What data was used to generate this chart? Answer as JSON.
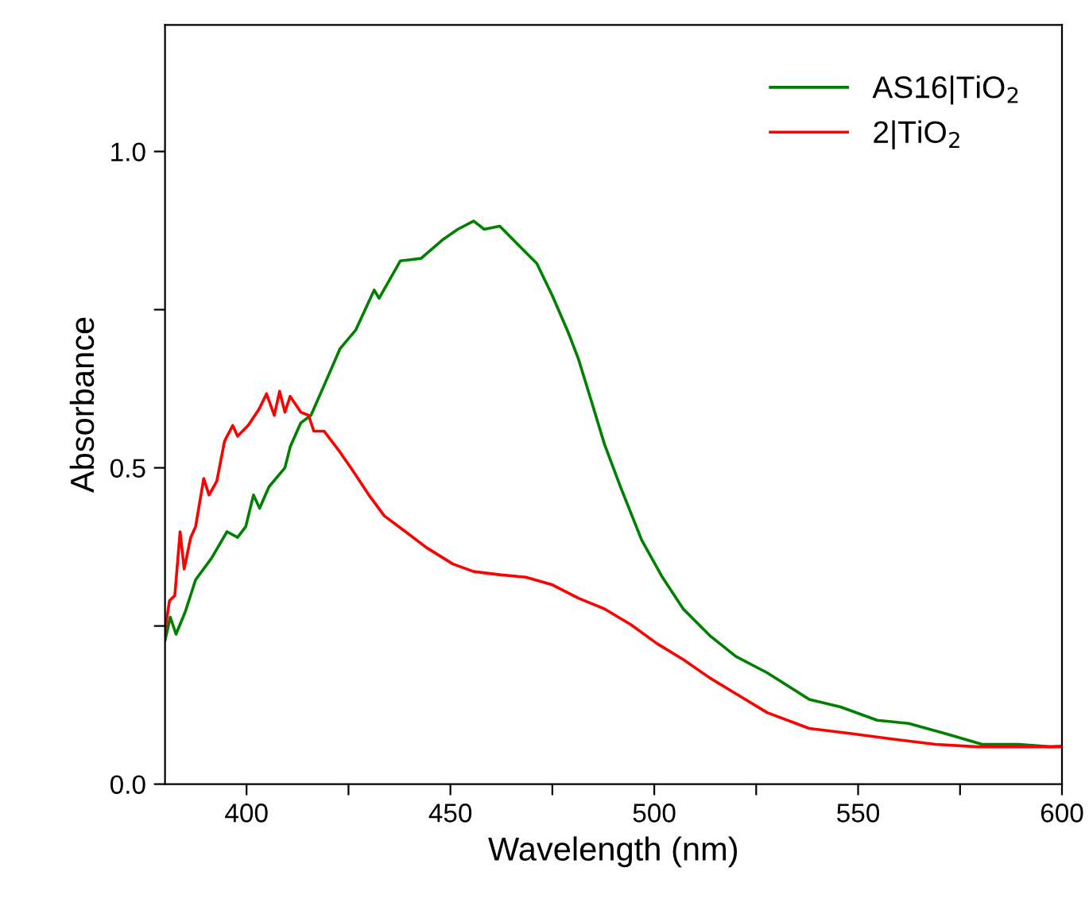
{
  "chart_data": {
    "type": "line",
    "xlabel": "Wavelength (nm)",
    "ylabel": "Absorbance",
    "xlim": [
      380,
      600
    ],
    "ylim": [
      0,
      1.2
    ],
    "xticks": [
      400,
      {
        "value": 425,
        "label": null
      },
      450,
      {
        "value": 475,
        "label": null
      },
      500,
      {
        "value": 525,
        "label": null
      },
      550,
      {
        "value": 575,
        "label": null
      },
      600
    ],
    "yticks": [
      {
        "value": 0,
        "label": "0.0"
      },
      {
        "value": 0.25,
        "label": null
      },
      {
        "value": 0.5,
        "label": "0.5"
      },
      {
        "value": 0.75,
        "label": null
      },
      {
        "value": 1.0,
        "label": "1.0"
      }
    ],
    "grid": false,
    "legend": "top right",
    "marker": "none",
    "line_style": "solid",
    "series": [
      {
        "name": "AS16|TiO$_{2}$",
        "color": "#008000",
        "x": [
          380,
          381.3,
          382.7,
          385,
          387.5,
          391.4,
          395.2,
          397.8,
          399.8,
          401.7,
          403.2,
          405.5,
          409.4,
          410.7,
          413.3,
          415.8,
          419,
          422.9,
          426.8,
          431.3,
          432.5,
          437.7,
          442.8,
          448,
          451.8,
          455.7,
          458.3,
          462.1,
          467.3,
          471.2,
          475,
          478.9,
          481.4,
          484.6,
          487.8,
          491.7,
          496.9,
          502,
          507.1,
          513.6,
          520,
          527.7,
          538,
          545.7,
          554.7,
          562.4,
          571.4,
          580.4,
          589.4,
          597.2,
          600
        ],
        "values": [
          0.227,
          0.264,
          0.237,
          0.273,
          0.323,
          0.357,
          0.399,
          0.39,
          0.407,
          0.457,
          0.436,
          0.47,
          0.5,
          0.533,
          0.571,
          0.583,
          0.63,
          0.688,
          0.718,
          0.781,
          0.768,
          0.827,
          0.831,
          0.86,
          0.877,
          0.89,
          0.877,
          0.882,
          0.848,
          0.823,
          0.772,
          0.714,
          0.672,
          0.605,
          0.537,
          0.47,
          0.386,
          0.327,
          0.277,
          0.235,
          0.202,
          0.176,
          0.134,
          0.122,
          0.101,
          0.096,
          0.08,
          0.063,
          0.063,
          0.059,
          0.06
        ]
      },
      {
        "name": "2|TiO$_{2}$",
        "color": "#ff0000",
        "x": [
          380,
          381.1,
          382.4,
          383.7,
          384.7,
          386.3,
          387.5,
          389.5,
          390.8,
          392.7,
          394.6,
          396.6,
          397.8,
          400.4,
          403,
          404.9,
          406.8,
          408.1,
          409.4,
          410.7,
          413.3,
          415.2,
          416.5,
          419,
          422.9,
          426.1,
          430,
          433.8,
          439,
          444.1,
          450.6,
          455.7,
          462.1,
          468.5,
          475,
          481.4,
          487.8,
          494.3,
          500.7,
          507.1,
          513.6,
          520,
          527.7,
          538,
          548.3,
          558.6,
          568.9,
          579.2,
          589.4,
          597.2,
          600
        ],
        "values": [
          0.243,
          0.29,
          0.298,
          0.399,
          0.34,
          0.39,
          0.407,
          0.483,
          0.457,
          0.479,
          0.542,
          0.567,
          0.55,
          0.567,
          0.592,
          0.617,
          0.583,
          0.621,
          0.588,
          0.613,
          0.588,
          0.583,
          0.558,
          0.558,
          0.525,
          0.495,
          0.457,
          0.424,
          0.399,
          0.374,
          0.348,
          0.336,
          0.331,
          0.327,
          0.315,
          0.294,
          0.277,
          0.252,
          0.222,
          0.197,
          0.168,
          0.143,
          0.113,
          0.088,
          0.08,
          0.071,
          0.063,
          0.059,
          0.059,
          0.059,
          0.059
        ]
      }
    ]
  }
}
